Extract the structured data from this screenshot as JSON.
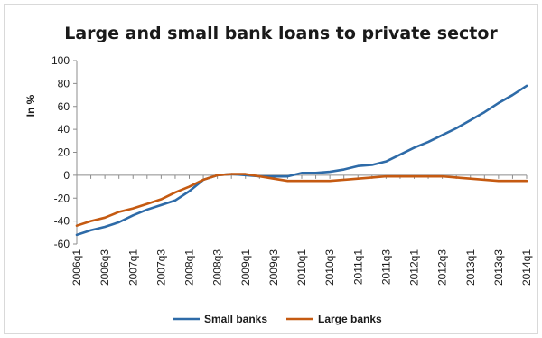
{
  "chart_data": {
    "type": "line",
    "title": "Large and small bank loans to private sector",
    "xlabel": "",
    "ylabel": "In %",
    "ylim": [
      -60,
      100
    ],
    "yticks": [
      100,
      80,
      60,
      40,
      20,
      0,
      -20,
      -40,
      -60
    ],
    "grid": false,
    "legend_position": "bottom",
    "x": [
      "2006q1",
      "2006q2",
      "2006q3",
      "2006q4",
      "2007q1",
      "2007q2",
      "2007q3",
      "2007q4",
      "2008q1",
      "2008q2",
      "2008q3",
      "2008q4",
      "2009q1",
      "2009q2",
      "2009q3",
      "2009q4",
      "2010q1",
      "2010q2",
      "2010q3",
      "2010q4",
      "2011q1",
      "2011q2",
      "2011q3",
      "2011q4",
      "2012q1",
      "2012q2",
      "2012q3",
      "2012q4",
      "2013q1",
      "2013q2",
      "2013q3",
      "2013q4",
      "2014q1"
    ],
    "xtick_labels": [
      "2006q1",
      "2006q3",
      "2007q1",
      "2007q3",
      "2008q1",
      "2008q3",
      "2009q1",
      "2009q3",
      "2010q1",
      "2010q3",
      "2011q1",
      "2011q3",
      "2012q1",
      "2012q3",
      "2013q1",
      "2013q3",
      "2014q1"
    ],
    "series": [
      {
        "name": "Small banks",
        "color": "#2e6ba8",
        "values": [
          -52,
          -48,
          -45,
          -41,
          -35,
          -30,
          -26,
          -22,
          -14,
          -4,
          0,
          1,
          0,
          -1,
          -1,
          -1,
          2,
          2,
          3,
          5,
          8,
          9,
          12,
          18,
          24,
          29,
          35,
          41,
          48,
          55,
          63,
          70,
          78
        ]
      },
      {
        "name": "Large banks",
        "color": "#c55a11",
        "values": [
          -44,
          -40,
          -37,
          -32,
          -29,
          -25,
          -21,
          -15,
          -10,
          -4,
          0,
          1,
          1,
          -1,
          -3,
          -5,
          -5,
          -5,
          -5,
          -4,
          -3,
          -2,
          -1,
          -1,
          -1,
          -1,
          -1,
          -2,
          -3,
          -4,
          -5,
          -5,
          -5
        ]
      }
    ]
  }
}
